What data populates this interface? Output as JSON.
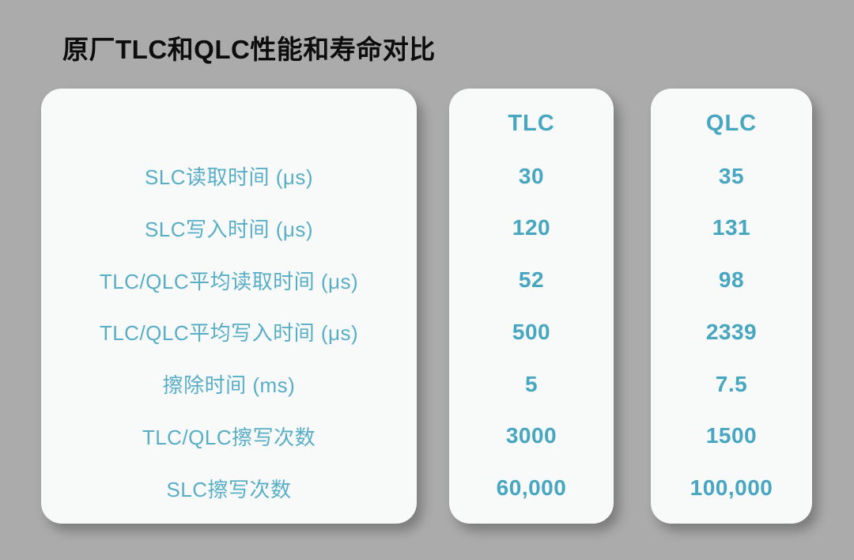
{
  "page": {
    "title": "原厂TLC和QLC性能和寿命对比"
  },
  "theme": {
    "background_color": "#ababab",
    "card_background": "#f8f9f9",
    "accent_teal": "#47a7c1",
    "label_teal": "#58aec7",
    "title_color": "#0d0d0d"
  },
  "chart_data": {
    "type": "table",
    "title": "原厂TLC和QLC性能和寿命对比",
    "columns": [
      "TLC",
      "QLC"
    ],
    "row_labels": [
      "SLC读取时间 (μs)",
      "SLC写入时间 (μs)",
      "TLC/QLC平均读取时间 (μs)",
      "TLC/QLC平均写入时间 (μs)",
      "擦除时间 (ms)",
      "TLC/QLC擦写次数",
      "SLC擦写次数"
    ],
    "series": [
      {
        "name": "TLC",
        "values": [
          "30",
          "120",
          "52",
          "500",
          "5",
          "3000",
          "60,000"
        ]
      },
      {
        "name": "QLC",
        "values": [
          "35",
          "131",
          "98",
          "2339",
          "7.5",
          "1500",
          "100,000"
        ]
      }
    ]
  }
}
